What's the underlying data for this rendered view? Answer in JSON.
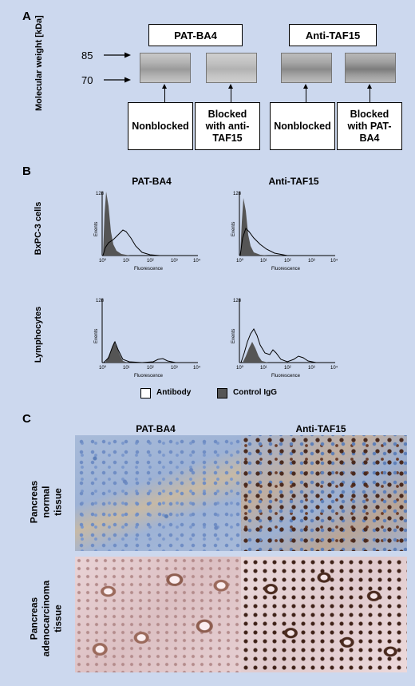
{
  "panelA": {
    "letter": "A",
    "yaxis_label": "Molecular weight [kDa]",
    "mw_markers": [
      "85",
      "70"
    ],
    "group_headers": [
      "PAT-BA4",
      "Anti-TAF15"
    ],
    "lane_labels": [
      "Nonblocked",
      "Blocked with anti-TAF15",
      "Nonblocked",
      "Blocked with PAT-BA4"
    ]
  },
  "panelB": {
    "letter": "B",
    "columns": [
      "PAT-BA4",
      "Anti-TAF15"
    ],
    "rows": [
      "BxPC-3 cells",
      "Lymphocytes"
    ],
    "axis": {
      "ylabel": "Events",
      "xlabel": "Fluorescence",
      "ymax": "128",
      "xticks": [
        "10⁰",
        "10¹",
        "10²",
        "10³",
        "10⁴"
      ]
    },
    "legend": {
      "antibody": "Antibody",
      "control": "Control IgG"
    }
  },
  "panelC": {
    "letter": "C",
    "columns": [
      "PAT-BA4",
      "Anti-TAF15"
    ],
    "rows": [
      "Pancreas normal tissue",
      "Pancreas adenocarcinoma tissue"
    ]
  },
  "colors": {
    "background": "#ccd8ee",
    "control_fill": "#555555",
    "he_blue": "#8fa7cc",
    "brown_stain": "#5a3322"
  }
}
